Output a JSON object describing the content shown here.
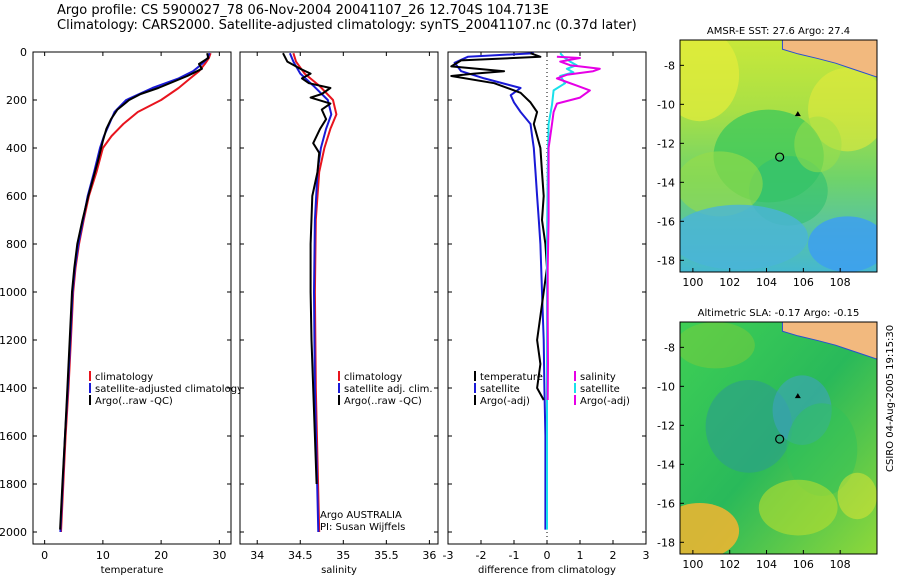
{
  "header": {
    "line1": "Argo profile: CS 5900027_78 06-Nov-2004 20041107_26 12.704S 104.713E",
    "line2": "Climatology: CARS2000. Satellite-adjusted climatology: synTS_20041107.nc (0.37d later)"
  },
  "colors": {
    "climatology": "#e8141e",
    "satellite": "#1a1ad6",
    "argo": "#000000",
    "argo_adj": "#e600e6",
    "sal_sat": "#19e0ea"
  },
  "chart_data": [
    {
      "type": "line",
      "id": "temperature",
      "xlabel": "temperature",
      "ylabel": "",
      "xlim": [
        -2,
        32
      ],
      "ylim": [
        2050,
        0
      ],
      "xticks": [
        0,
        10,
        20,
        30
      ],
      "yticks": [
        0,
        200,
        400,
        600,
        800,
        1000,
        1200,
        1400,
        1600,
        1800,
        2000
      ],
      "legend": [
        "climatology",
        "satellite-adjusted climatology",
        "Argo(..raw -QC)"
      ],
      "series": [
        {
          "name": "climatology",
          "color_key": "climatology",
          "points": [
            [
              28.5,
              5
            ],
            [
              28.2,
              25
            ],
            [
              27.5,
              50
            ],
            [
              26.5,
              80
            ],
            [
              25,
              110
            ],
            [
              23,
              150
            ],
            [
              20,
              200
            ],
            [
              16,
              250
            ],
            [
              13.5,
              300
            ],
            [
              11.5,
              350
            ],
            [
              10,
              400
            ],
            [
              8.9,
              500
            ],
            [
              7.6,
              600
            ],
            [
              6.7,
              700
            ],
            [
              5.9,
              800
            ],
            [
              5.3,
              900
            ],
            [
              4.9,
              1000
            ],
            [
              4.5,
              1200
            ],
            [
              4.1,
              1400
            ],
            [
              3.6,
              1600
            ],
            [
              3.2,
              1800
            ],
            [
              2.8,
              2000
            ]
          ]
        },
        {
          "name": "satellite-adjusted climatology",
          "color_key": "satellite",
          "points": [
            [
              28.3,
              5
            ],
            [
              28,
              25
            ],
            [
              27,
              50
            ],
            [
              25.5,
              80
            ],
            [
              23,
              110
            ],
            [
              18.5,
              150
            ],
            [
              14,
              200
            ],
            [
              12,
              250
            ],
            [
              11.1,
              300
            ],
            [
              10.2,
              350
            ],
            [
              9.5,
              400
            ],
            [
              8.5,
              500
            ],
            [
              7.4,
              600
            ],
            [
              6.6,
              700
            ],
            [
              5.8,
              800
            ],
            [
              5.2,
              900
            ],
            [
              4.8,
              1000
            ],
            [
              4.4,
              1200
            ],
            [
              4,
              1400
            ],
            [
              3.5,
              1600
            ],
            [
              3.1,
              1800
            ],
            [
              2.7,
              2000
            ]
          ]
        },
        {
          "name": "Argo(..raw -QC)",
          "color_key": "argo",
          "points": [
            [
              27.9,
              5
            ],
            [
              28.1,
              25
            ],
            [
              26.5,
              50
            ],
            [
              27,
              70
            ],
            [
              24.5,
              100
            ],
            [
              22,
              125
            ],
            [
              19.5,
              150
            ],
            [
              16.5,
              175
            ],
            [
              14.5,
              200
            ],
            [
              12.5,
              240
            ],
            [
              11.4,
              280
            ],
            [
              10.6,
              320
            ],
            [
              10,
              370
            ],
            [
              9.2,
              450
            ],
            [
              8.4,
              520
            ],
            [
              7.5,
              600
            ],
            [
              6.5,
              700
            ],
            [
              5.6,
              800
            ],
            [
              5.1,
              900
            ],
            [
              4.7,
              1000
            ],
            [
              4.3,
              1200
            ],
            [
              3.9,
              1400
            ],
            [
              3.5,
              1600
            ],
            [
              3.05,
              1800
            ],
            [
              2.65,
              1990
            ]
          ]
        }
      ]
    },
    {
      "type": "line",
      "id": "salinity",
      "xlabel": "salinity",
      "xlim": [
        33.8,
        36.1
      ],
      "ylim": [
        2050,
        0
      ],
      "xticks": [
        34,
        34.5,
        35,
        35.5,
        36
      ],
      "legend": [
        "climatology",
        "satellite adj. clim.",
        "Argo(..raw -QC)"
      ],
      "annotation": [
        "Argo AUSTRALIA",
        "PI: Susan Wijffels"
      ],
      "series": [
        {
          "name": "climatology",
          "color_key": "climatology",
          "points": [
            [
              34.42,
              5
            ],
            [
              34.45,
              40
            ],
            [
              34.55,
              90
            ],
            [
              34.72,
              140
            ],
            [
              34.88,
              200
            ],
            [
              34.92,
              260
            ],
            [
              34.85,
              320
            ],
            [
              34.78,
              400
            ],
            [
              34.72,
              500
            ],
            [
              34.68,
              700
            ],
            [
              34.67,
              1000
            ],
            [
              34.68,
              1400
            ],
            [
              34.7,
              1700
            ],
            [
              34.72,
              2000
            ]
          ]
        },
        {
          "name": "satellite adj. clim.",
          "color_key": "satellite",
          "points": [
            [
              34.38,
              5
            ],
            [
              34.42,
              40
            ],
            [
              34.5,
              90
            ],
            [
              34.65,
              140
            ],
            [
              34.82,
              200
            ],
            [
              34.86,
              260
            ],
            [
              34.8,
              320
            ],
            [
              34.74,
              400
            ],
            [
              34.7,
              500
            ],
            [
              34.67,
              700
            ],
            [
              34.66,
              1000
            ],
            [
              34.67,
              1400
            ],
            [
              34.69,
              1700
            ],
            [
              34.71,
              2000
            ]
          ]
        },
        {
          "name": "Argo(..raw -QC)",
          "color_key": "argo",
          "points": [
            [
              34.3,
              5
            ],
            [
              34.35,
              40
            ],
            [
              34.5,
              70
            ],
            [
              34.62,
              90
            ],
            [
              34.52,
              110
            ],
            [
              34.6,
              130
            ],
            [
              34.85,
              150
            ],
            [
              34.75,
              175
            ],
            [
              34.62,
              190
            ],
            [
              34.85,
              215
            ],
            [
              34.75,
              240
            ],
            [
              34.8,
              280
            ],
            [
              34.73,
              320
            ],
            [
              34.65,
              380
            ],
            [
              34.72,
              420
            ],
            [
              34.7,
              500
            ],
            [
              34.64,
              600
            ],
            [
              34.62,
              800
            ],
            [
              34.62,
              1000
            ],
            [
              34.63,
              1200
            ],
            [
              34.65,
              1400
            ],
            [
              34.67,
              1600
            ],
            [
              34.69,
              1800
            ]
          ]
        }
      ]
    },
    {
      "type": "line",
      "id": "difference",
      "xlabel": "difference from climatology",
      "xlim": [
        -3,
        3
      ],
      "ylim": [
        2050,
        0
      ],
      "xticks": [
        -3,
        -2,
        -1,
        0,
        1,
        2,
        3
      ],
      "legend_temperature": [
        "temperature",
        "satellite",
        "Argo(-adj)"
      ],
      "legend_salinity": [
        "salinity",
        "satellite",
        "Argo(-adj)"
      ],
      "series": [
        {
          "name": "temperature satellite",
          "color_key": "satellite",
          "points": [
            [
              -0.4,
              5
            ],
            [
              -2.4,
              20
            ],
            [
              -2.8,
              45
            ],
            [
              -2.6,
              80
            ],
            [
              -1.9,
              110
            ],
            [
              -0.8,
              150
            ],
            [
              -1.1,
              180
            ],
            [
              -1.0,
              210
            ],
            [
              -0.8,
              250
            ],
            [
              -0.5,
              300
            ],
            [
              -0.45,
              350
            ],
            [
              -0.4,
              400
            ],
            [
              -0.35,
              500
            ],
            [
              -0.3,
              600
            ],
            [
              -0.25,
              700
            ],
            [
              -0.2,
              800
            ],
            [
              -0.15,
              1000
            ],
            [
              -0.1,
              1200
            ],
            [
              -0.08,
              1400
            ],
            [
              -0.05,
              1600
            ],
            [
              -0.05,
              1800
            ],
            [
              -0.05,
              1990
            ]
          ]
        },
        {
          "name": "temperature Argo(-adj)",
          "color_key": "argo",
          "points": [
            [
              -0.5,
              5
            ],
            [
              -0.2,
              20
            ],
            [
              -2.6,
              35
            ],
            [
              -2.9,
              60
            ],
            [
              -1.3,
              80
            ],
            [
              -2.2,
              90
            ],
            [
              -2.9,
              100
            ],
            [
              -1.6,
              130
            ],
            [
              -0.8,
              170
            ],
            [
              -0.5,
              210
            ],
            [
              -0.3,
              250
            ],
            [
              -0.4,
              300
            ],
            [
              -0.2,
              400
            ],
            [
              -0.15,
              500
            ],
            [
              -0.1,
              600
            ],
            [
              -0.15,
              700
            ],
            [
              -0.05,
              800
            ],
            [
              0,
              900
            ],
            [
              -0.1,
              1000
            ],
            [
              -0.2,
              1100
            ],
            [
              -0.3,
              1200
            ],
            [
              -0.2,
              1300
            ],
            [
              -0.3,
              1400
            ],
            [
              -0.1,
              1450
            ]
          ]
        },
        {
          "name": "salinity satellite",
          "color_key": "sal_sat",
          "points": [
            [
              0.4,
              5
            ],
            [
              0.5,
              20
            ],
            [
              0.7,
              40
            ],
            [
              0.9,
              55
            ],
            [
              0.6,
              70
            ],
            [
              0.8,
              85
            ],
            [
              0.4,
              100
            ],
            [
              0.55,
              130
            ],
            [
              0.2,
              160
            ],
            [
              0.15,
              220
            ],
            [
              0.05,
              300
            ],
            [
              0.02,
              500
            ],
            [
              0,
              800
            ],
            [
              0,
              1200
            ],
            [
              0,
              1600
            ],
            [
              0,
              1990
            ]
          ]
        },
        {
          "name": "salinity Argo(-adj)",
          "color_key": "argo_adj",
          "points": [
            [
              0.3,
              20
            ],
            [
              1.0,
              25
            ],
            [
              0.4,
              40
            ],
            [
              0.7,
              55
            ],
            [
              1.6,
              70
            ],
            [
              1.4,
              80
            ],
            [
              0.6,
              95
            ],
            [
              0.3,
              110
            ],
            [
              0.6,
              125
            ],
            [
              0.9,
              140
            ],
            [
              1.3,
              160
            ],
            [
              1.0,
              190
            ],
            [
              0.3,
              215
            ],
            [
              0.2,
              250
            ],
            [
              0.15,
              300
            ],
            [
              0.05,
              400
            ],
            [
              0.05,
              500
            ],
            [
              0.05,
              700
            ],
            [
              0.02,
              900
            ],
            [
              0.02,
              1100
            ],
            [
              0.03,
              1300
            ],
            [
              0.02,
              1450
            ]
          ]
        }
      ]
    },
    {
      "type": "heatmap",
      "id": "sst_map",
      "title": "AMSR-E SST: 27.6 Argo: 27.4",
      "xlim": [
        99.3,
        110
      ],
      "ylim": [
        -18.6,
        -6.7
      ],
      "xticks": [
        100,
        102,
        104,
        106,
        108
      ],
      "yticks": [
        -8,
        -10,
        -12,
        -14,
        -16,
        -18
      ],
      "markers": {
        "argo_position": [
          104.713,
          -12.704
        ],
        "triangle": [
          105.7,
          -10.5
        ]
      }
    },
    {
      "type": "heatmap",
      "id": "sla_map",
      "title": "Altimetric SLA: -0.17 Argo: -0.15",
      "xlim": [
        99.3,
        110
      ],
      "ylim": [
        -18.6,
        -6.7
      ],
      "xticks": [
        100,
        102,
        104,
        106,
        108
      ],
      "yticks": [
        -8,
        -10,
        -12,
        -14,
        -16,
        -18
      ],
      "markers": {
        "argo_position": [
          104.713,
          -12.704
        ],
        "triangle": [
          105.7,
          -10.5
        ]
      }
    }
  ],
  "footer": {
    "credit": "CSIRO 04-Aug-2005 19:15:30"
  }
}
